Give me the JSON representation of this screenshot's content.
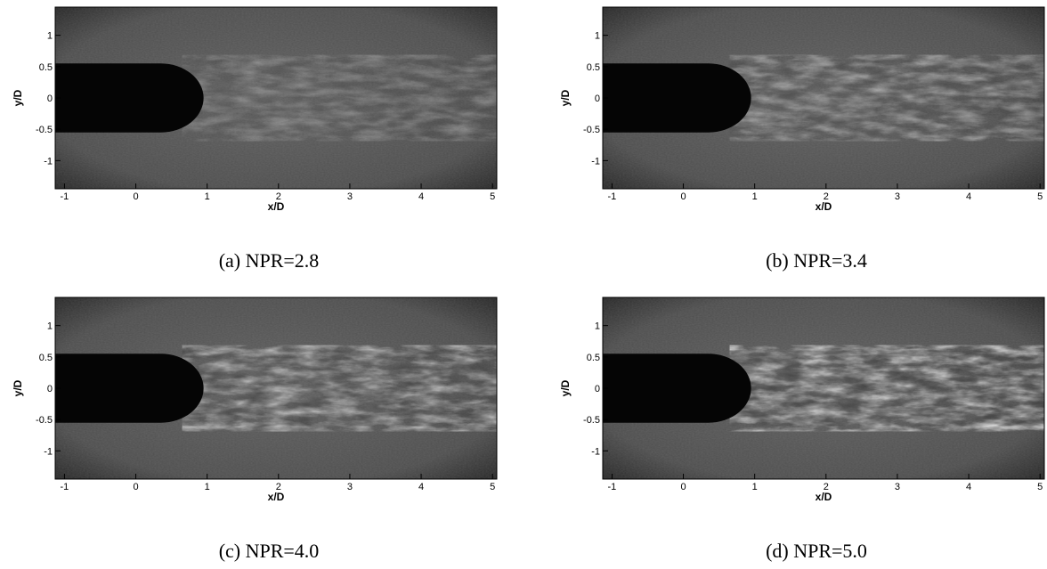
{
  "chart_data": [
    {
      "type": "image",
      "caption": "(a) NPR=2.8",
      "xlabel": "x/D",
      "ylabel": "y/D",
      "xlim": [
        -1.13,
        5.06
      ],
      "ylim": [
        -1.45,
        1.45
      ],
      "xticks": [
        -1,
        0,
        1,
        2,
        3,
        4,
        5
      ],
      "yticks": [
        -1,
        -0.5,
        0,
        0.5,
        1
      ]
    },
    {
      "type": "image",
      "caption": "(b) NPR=3.4",
      "xlabel": "x/D",
      "ylabel": "y/D",
      "xlim": [
        -1.13,
        5.06
      ],
      "ylim": [
        -1.45,
        1.45
      ],
      "xticks": [
        -1,
        0,
        1,
        2,
        3,
        4,
        5
      ],
      "yticks": [
        -1,
        -0.5,
        0,
        0.5,
        1
      ]
    },
    {
      "type": "image",
      "caption": "(c) NPR=4.0",
      "xlabel": "x/D",
      "ylabel": "y/D",
      "xlim": [
        -1.13,
        5.06
      ],
      "ylim": [
        -1.45,
        1.45
      ],
      "xticks": [
        -1,
        0,
        1,
        2,
        3,
        4,
        5
      ],
      "yticks": [
        -1,
        -0.5,
        0,
        0.5,
        1
      ]
    },
    {
      "type": "image",
      "caption": "(d) NPR=5.0",
      "xlabel": "x/D",
      "ylabel": "y/D",
      "xlim": [
        -1.13,
        5.06
      ],
      "ylim": [
        -1.45,
        1.45
      ],
      "xticks": [
        -1,
        0,
        1,
        2,
        3,
        4,
        5
      ],
      "yticks": [
        -1,
        -0.5,
        0,
        0.5,
        1
      ]
    }
  ]
}
